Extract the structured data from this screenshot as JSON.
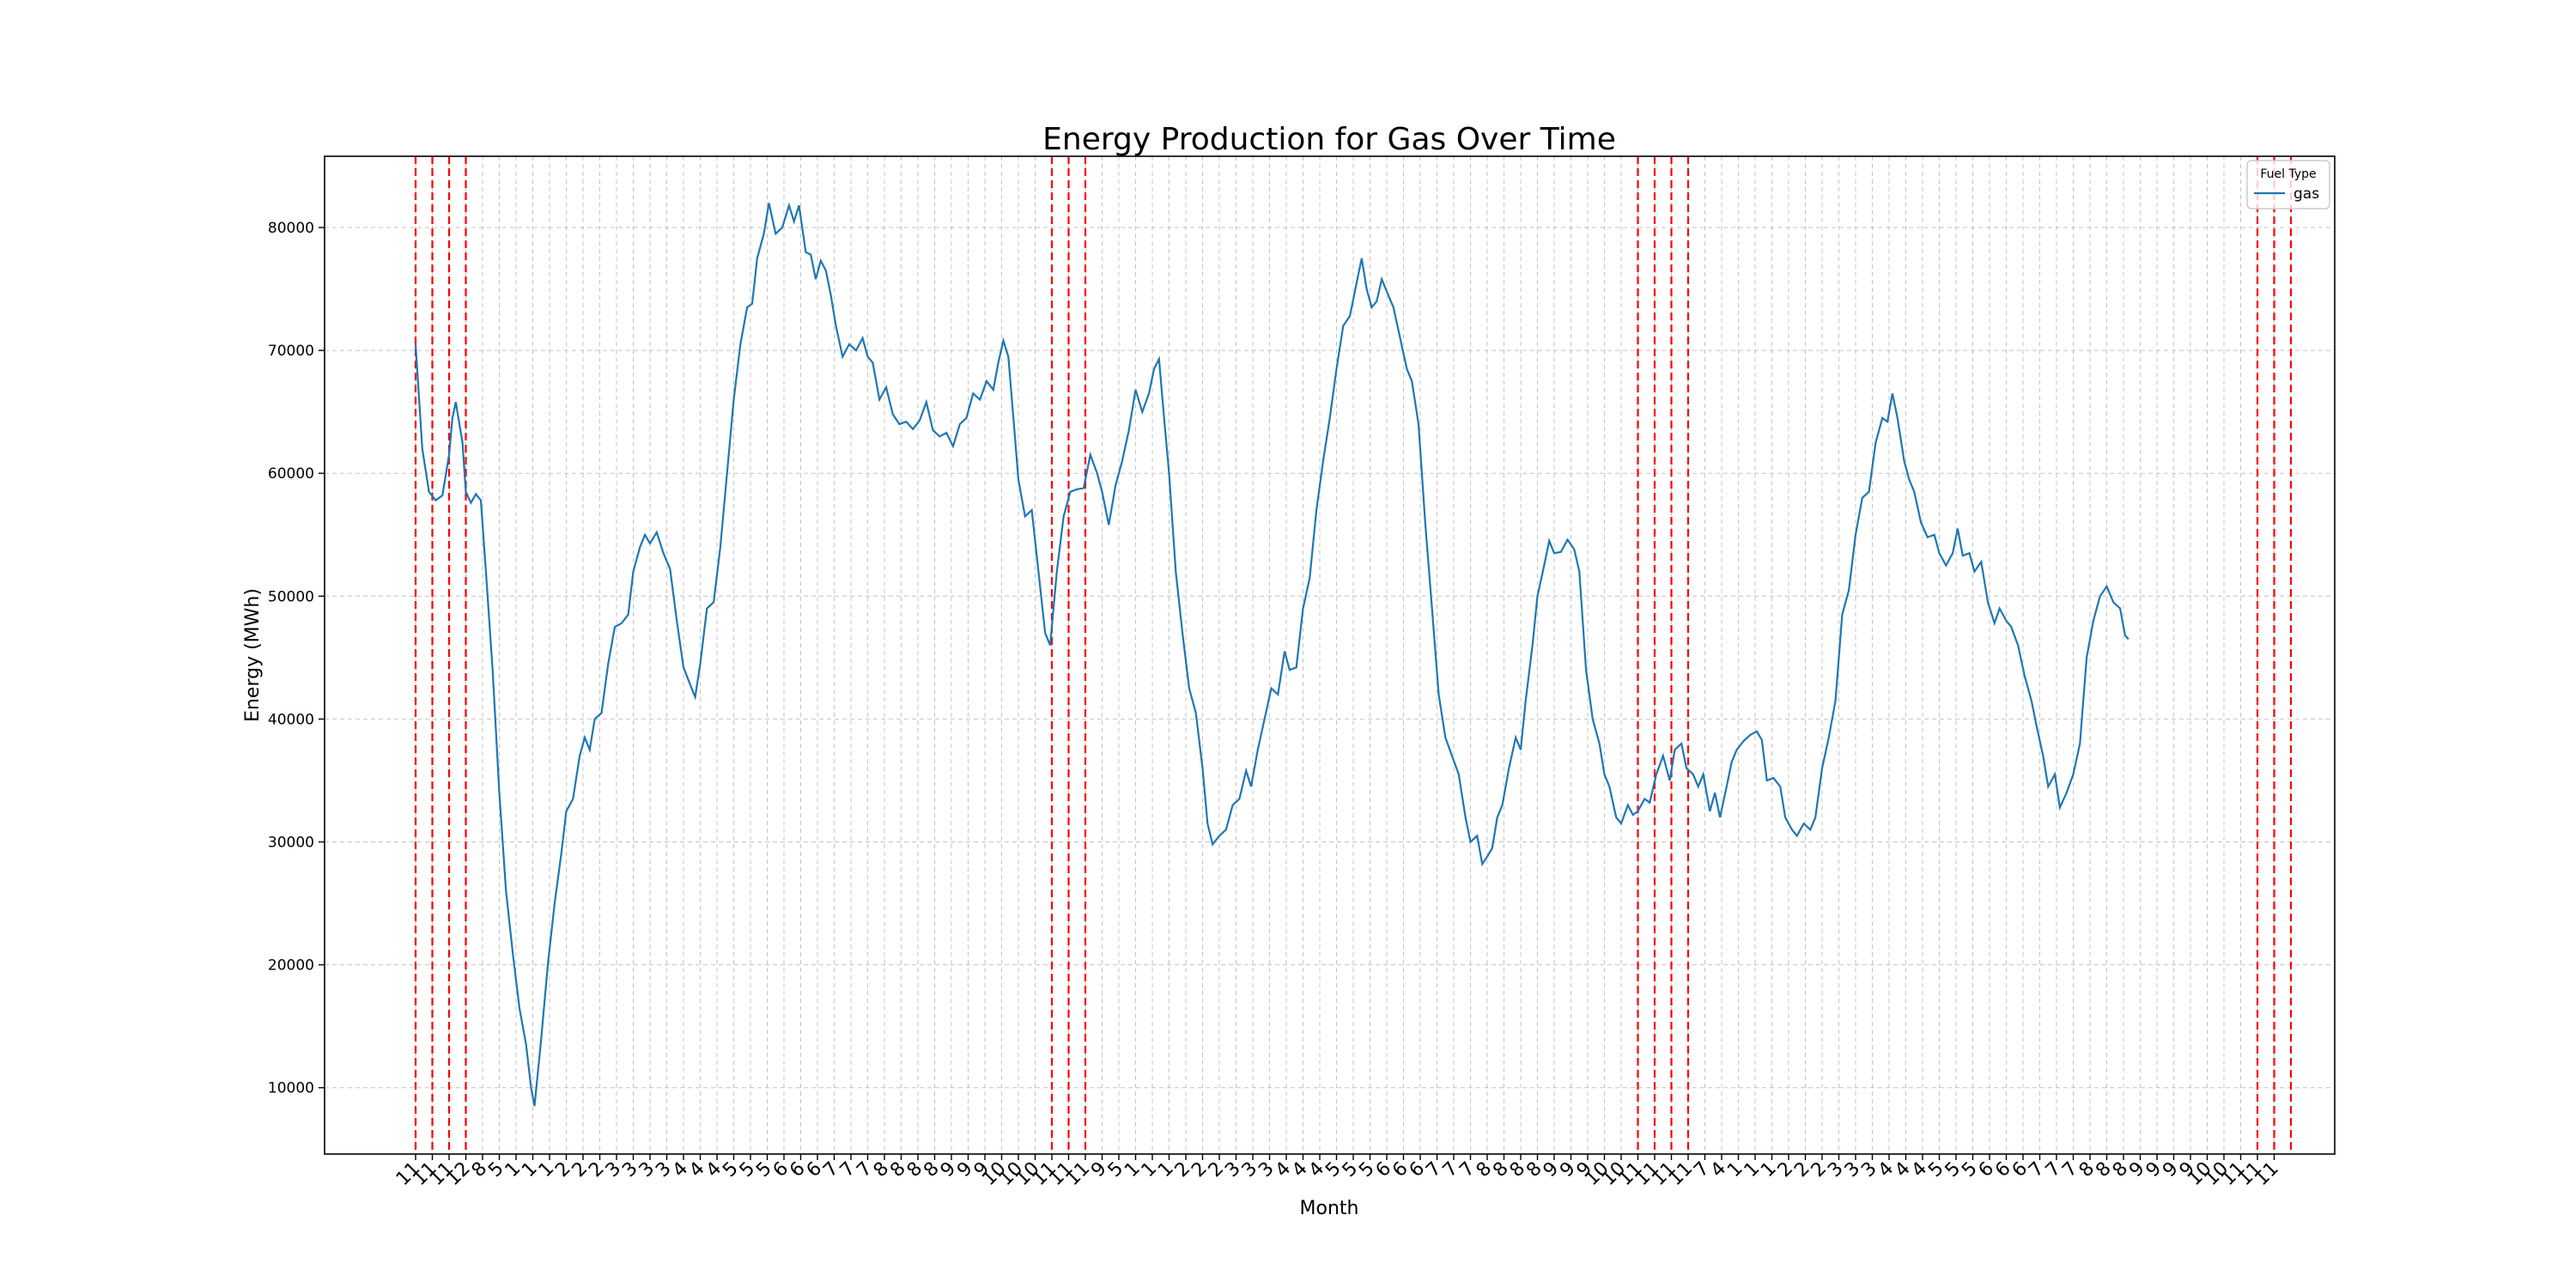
{
  "chart_data": {
    "type": "line",
    "title": "Energy Production for Gas Over Time",
    "xlabel": "Month",
    "ylabel": "Energy (MWh)",
    "ylim": [
      4600,
      85800
    ],
    "yticks": [
      10000,
      20000,
      30000,
      40000,
      50000,
      60000,
      70000,
      80000
    ],
    "grid": true,
    "legend": {
      "title": "Fuel Type",
      "placement": "top-right"
    },
    "line_color": "#1f77b4",
    "event_line_color": "#ff0000",
    "x_tick_labels": [
      "11",
      "11",
      "11",
      "12",
      "8",
      "5",
      "1",
      "1",
      "1",
      "2",
      "2",
      "2",
      "3",
      "3",
      "3",
      "3",
      "4",
      "4",
      "4",
      "5",
      "5",
      "5",
      "6",
      "6",
      "6",
      "7",
      "7",
      "7",
      "8",
      "8",
      "8",
      "8",
      "9",
      "9",
      "9",
      "10",
      "10",
      "10",
      "11",
      "11",
      "11",
      "9",
      "5",
      "1",
      "1",
      "1",
      "2",
      "2",
      "2",
      "3",
      "3",
      "3",
      "4",
      "4",
      "4",
      "5",
      "5",
      "5",
      "6",
      "6",
      "6",
      "7",
      "7",
      "7",
      "8",
      "8",
      "8",
      "8",
      "9",
      "9",
      "9",
      "10",
      "10",
      "11",
      "11",
      "11",
      "11",
      "7",
      "4",
      "1",
      "1",
      "1",
      "2",
      "2",
      "2",
      "3",
      "3",
      "3",
      "4",
      "4",
      "4",
      "5",
      "5",
      "5",
      "6",
      "6",
      "6",
      "7",
      "7",
      "7",
      "8",
      "8",
      "8",
      "9",
      "9",
      "9",
      "9",
      "10",
      "10",
      "11",
      "11",
      "11"
    ],
    "event_markers": [
      0,
      1,
      2,
      3,
      38,
      39,
      40,
      73,
      74,
      75,
      76,
      110,
      111,
      112
    ],
    "series": [
      {
        "name": "gas",
        "values": [
          [
            0,
            70500
          ],
          [
            0.4,
            62000
          ],
          [
            0.8,
            58500
          ],
          [
            1.2,
            57800
          ],
          [
            1.6,
            58200
          ],
          [
            2,
            61500
          ],
          [
            2.2,
            64500
          ],
          [
            2.4,
            65800
          ],
          [
            2.8,
            62500
          ],
          [
            3,
            58500
          ],
          [
            3.3,
            57600
          ],
          [
            3.6,
            58300
          ],
          [
            3.9,
            57800
          ],
          [
            4.2,
            52000
          ],
          [
            4.6,
            44000
          ],
          [
            5,
            34000
          ],
          [
            5.4,
            26000
          ],
          [
            5.8,
            21000
          ],
          [
            6.2,
            16500
          ],
          [
            6.6,
            13500
          ],
          [
            6.9,
            10000
          ],
          [
            7.1,
            8500
          ],
          [
            7.5,
            14000
          ],
          [
            7.9,
            20000
          ],
          [
            8.3,
            25000
          ],
          [
            8.7,
            29000
          ],
          [
            9,
            32500
          ],
          [
            9.4,
            33500
          ],
          [
            9.8,
            37000
          ],
          [
            10.1,
            38500
          ],
          [
            10.4,
            37500
          ],
          [
            10.7,
            40000
          ],
          [
            11.1,
            40500
          ],
          [
            11.5,
            44500
          ],
          [
            11.9,
            47500
          ],
          [
            12.3,
            47800
          ],
          [
            12.7,
            48500
          ],
          [
            13,
            52000
          ],
          [
            13.4,
            54000
          ],
          [
            13.7,
            55000
          ],
          [
            14,
            54300
          ],
          [
            14.4,
            55200
          ],
          [
            14.8,
            53500
          ],
          [
            15.2,
            52200
          ],
          [
            15.6,
            48000
          ],
          [
            16,
            44200
          ],
          [
            16.4,
            42800
          ],
          [
            16.7,
            41800
          ],
          [
            17,
            44500
          ],
          [
            17.4,
            49000
          ],
          [
            17.8,
            49500
          ],
          [
            18.2,
            54000
          ],
          [
            18.6,
            60000
          ],
          [
            19,
            66000
          ],
          [
            19.4,
            70500
          ],
          [
            19.8,
            73500
          ],
          [
            20.1,
            73800
          ],
          [
            20.4,
            77500
          ],
          [
            20.8,
            79500
          ],
          [
            21.1,
            82000
          ],
          [
            21.5,
            79500
          ],
          [
            21.9,
            80000
          ],
          [
            22.3,
            81800
          ],
          [
            22.6,
            80500
          ],
          [
            22.9,
            81800
          ],
          [
            23.3,
            78000
          ],
          [
            23.6,
            77800
          ],
          [
            23.9,
            75800
          ],
          [
            24.2,
            77300
          ],
          [
            24.5,
            76500
          ],
          [
            24.8,
            74500
          ],
          [
            25.1,
            72000
          ],
          [
            25.5,
            69500
          ],
          [
            25.9,
            70500
          ],
          [
            26.3,
            70000
          ],
          [
            26.7,
            71000
          ],
          [
            27,
            69500
          ],
          [
            27.3,
            69000
          ],
          [
            27.7,
            66000
          ],
          [
            28.1,
            67000
          ],
          [
            28.5,
            64800
          ],
          [
            28.9,
            64000
          ],
          [
            29.3,
            64200
          ],
          [
            29.7,
            63600
          ],
          [
            30.1,
            64300
          ],
          [
            30.5,
            65800
          ],
          [
            30.9,
            63500
          ],
          [
            31.3,
            63000
          ],
          [
            31.7,
            63300
          ],
          [
            32.1,
            62200
          ],
          [
            32.5,
            64000
          ],
          [
            32.9,
            64500
          ],
          [
            33.3,
            66500
          ],
          [
            33.7,
            66000
          ],
          [
            34.1,
            67500
          ],
          [
            34.5,
            66800
          ],
          [
            34.8,
            69000
          ],
          [
            35.1,
            70800
          ],
          [
            35.4,
            69500
          ],
          [
            35.7,
            64500
          ],
          [
            36,
            59500
          ],
          [
            36.4,
            56500
          ],
          [
            36.8,
            57000
          ],
          [
            37.2,
            52000
          ],
          [
            37.6,
            47000
          ],
          [
            37.9,
            46000
          ],
          [
            38.3,
            52000
          ],
          [
            38.7,
            56500
          ],
          [
            39.1,
            58500
          ],
          [
            39.5,
            58700
          ],
          [
            39.9,
            58800
          ],
          [
            40.3,
            61500
          ],
          [
            40.7,
            60000
          ],
          [
            41,
            58500
          ],
          [
            41.4,
            55800
          ],
          [
            41.8,
            59000
          ],
          [
            42.2,
            61000
          ],
          [
            42.6,
            63500
          ],
          [
            43,
            66800
          ],
          [
            43.4,
            65000
          ],
          [
            43.8,
            66500
          ],
          [
            44.1,
            68500
          ],
          [
            44.4,
            69300
          ],
          [
            44.7,
            64500
          ],
          [
            45,
            60000
          ],
          [
            45.4,
            52000
          ],
          [
            45.8,
            47000
          ],
          [
            46.2,
            42500
          ],
          [
            46.6,
            40500
          ],
          [
            47,
            36000
          ],
          [
            47.3,
            31500
          ],
          [
            47.6,
            29800
          ],
          [
            48,
            30500
          ],
          [
            48.4,
            31000
          ],
          [
            48.8,
            33000
          ],
          [
            49.2,
            33500
          ],
          [
            49.6,
            35800
          ],
          [
            49.9,
            34500
          ],
          [
            50.3,
            37500
          ],
          [
            50.7,
            40000
          ],
          [
            51.1,
            42500
          ],
          [
            51.5,
            42000
          ],
          [
            51.9,
            45500
          ],
          [
            52.2,
            44000
          ],
          [
            52.6,
            44200
          ],
          [
            53,
            49000
          ],
          [
            53.4,
            51500
          ],
          [
            53.8,
            57000
          ],
          [
            54.2,
            61000
          ],
          [
            54.6,
            64500
          ],
          [
            55,
            68500
          ],
          [
            55.4,
            72000
          ],
          [
            55.8,
            72800
          ],
          [
            56.2,
            75500
          ],
          [
            56.5,
            77500
          ],
          [
            56.8,
            75000
          ],
          [
            57.1,
            73500
          ],
          [
            57.4,
            74000
          ],
          [
            57.7,
            75800
          ],
          [
            58,
            74800
          ],
          [
            58.4,
            73500
          ],
          [
            58.8,
            71000
          ],
          [
            59.2,
            68500
          ],
          [
            59.5,
            67500
          ],
          [
            59.9,
            64000
          ],
          [
            60.3,
            56000
          ],
          [
            60.7,
            49000
          ],
          [
            61.1,
            42000
          ],
          [
            61.5,
            38500
          ],
          [
            61.9,
            37000
          ],
          [
            62.3,
            35500
          ],
          [
            62.7,
            32000
          ],
          [
            63,
            30000
          ],
          [
            63.4,
            30500
          ],
          [
            63.7,
            28200
          ],
          [
            64,
            28800
          ],
          [
            64.3,
            29500
          ],
          [
            64.6,
            32000
          ],
          [
            64.9,
            33000
          ],
          [
            65.3,
            36000
          ],
          [
            65.7,
            38500
          ],
          [
            66,
            37500
          ],
          [
            66.3,
            41500
          ],
          [
            66.7,
            46000
          ],
          [
            67,
            50000
          ],
          [
            67.4,
            52500
          ],
          [
            67.7,
            54500
          ],
          [
            68,
            53500
          ],
          [
            68.4,
            53600
          ],
          [
            68.8,
            54600
          ],
          [
            69.2,
            53800
          ],
          [
            69.5,
            52000
          ],
          [
            69.9,
            44000
          ],
          [
            70.3,
            40000
          ],
          [
            70.7,
            38000
          ],
          [
            71,
            35500
          ],
          [
            71.3,
            34500
          ],
          [
            71.7,
            32000
          ],
          [
            72,
            31500
          ],
          [
            72.4,
            33000
          ],
          [
            72.7,
            32200
          ],
          [
            73,
            32500
          ],
          [
            73.4,
            33500
          ],
          [
            73.7,
            33200
          ],
          [
            74.1,
            35500
          ],
          [
            74.5,
            37000
          ],
          [
            74.9,
            35000
          ],
          [
            75.2,
            37500
          ],
          [
            75.6,
            38000
          ],
          [
            75.9,
            36000
          ],
          [
            76.3,
            35500
          ],
          [
            76.6,
            34500
          ],
          [
            76.9,
            35500
          ],
          [
            77.3,
            32500
          ],
          [
            77.6,
            34000
          ],
          [
            77.9,
            32000
          ],
          [
            78.3,
            34500
          ],
          [
            78.6,
            36500
          ],
          [
            78.9,
            37500
          ],
          [
            79.3,
            38200
          ],
          [
            79.7,
            38700
          ],
          [
            80.1,
            39000
          ],
          [
            80.4,
            38300
          ],
          [
            80.7,
            35000
          ],
          [
            81.1,
            35200
          ],
          [
            81.5,
            34500
          ],
          [
            81.8,
            32000
          ],
          [
            82.2,
            31000
          ],
          [
            82.5,
            30500
          ],
          [
            82.9,
            31500
          ],
          [
            83.3,
            31000
          ],
          [
            83.6,
            32000
          ],
          [
            84,
            36000
          ],
          [
            84.4,
            38500
          ],
          [
            84.8,
            41500
          ],
          [
            85.2,
            48500
          ],
          [
            85.6,
            50500
          ],
          [
            86,
            55000
          ],
          [
            86.4,
            58000
          ],
          [
            86.8,
            58500
          ],
          [
            87.2,
            62500
          ],
          [
            87.6,
            64500
          ],
          [
            87.9,
            64200
          ],
          [
            88.2,
            66500
          ],
          [
            88.5,
            64500
          ],
          [
            88.9,
            61000
          ],
          [
            89.2,
            59500
          ],
          [
            89.5,
            58500
          ],
          [
            89.9,
            56000
          ],
          [
            90.3,
            54800
          ],
          [
            90.7,
            55000
          ],
          [
            91,
            53500
          ],
          [
            91.4,
            52500
          ],
          [
            91.8,
            53500
          ],
          [
            92.1,
            55500
          ],
          [
            92.4,
            53300
          ],
          [
            92.8,
            53500
          ],
          [
            93.1,
            52000
          ],
          [
            93.5,
            52800
          ],
          [
            93.9,
            49500
          ],
          [
            94.3,
            47800
          ],
          [
            94.6,
            49000
          ],
          [
            95,
            48000
          ],
          [
            95.3,
            47500
          ],
          [
            95.7,
            46000
          ],
          [
            96.1,
            43500
          ],
          [
            96.5,
            41500
          ],
          [
            96.8,
            39500
          ],
          [
            97.2,
            37000
          ],
          [
            97.5,
            34500
          ],
          [
            97.9,
            35500
          ],
          [
            98.2,
            32800
          ],
          [
            98.6,
            34000
          ],
          [
            99,
            35500
          ],
          [
            99.4,
            38000
          ],
          [
            99.8,
            45000
          ],
          [
            100.2,
            48000
          ],
          [
            100.6,
            50000
          ],
          [
            101,
            50800
          ],
          [
            101.4,
            49500
          ],
          [
            101.8,
            49000
          ],
          [
            102.1,
            46800
          ],
          [
            102.3,
            46500
          ]
        ]
      }
    ]
  }
}
